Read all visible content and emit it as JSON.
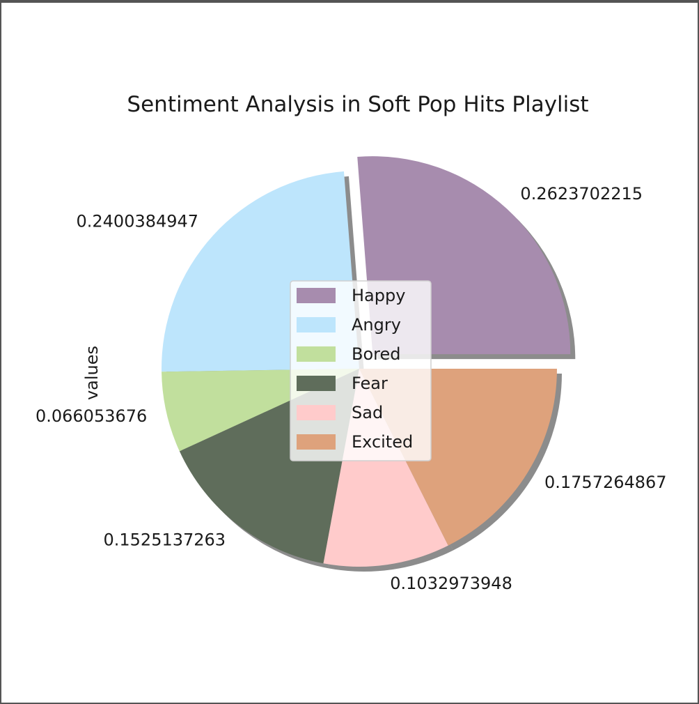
{
  "chart_data": {
    "type": "pie",
    "title": "Sentiment Analysis in Soft Pop Hits Playlist",
    "ylabel": "values",
    "categories": [
      "Happy",
      "Angry",
      "Bored",
      "Fear",
      "Sad",
      "Excited"
    ],
    "values": [
      0.2623702215,
      0.2400384947,
      0.066053676,
      0.1525137263,
      0.1032973948,
      0.1757264867
    ],
    "labels": [
      "0.2623702215",
      "0.2400384947",
      "0.066053676",
      "0.1525137263",
      "0.1032973948",
      "0.1757264867"
    ],
    "colors": [
      "#a78cae",
      "#bde5fc",
      "#c1df9d",
      "#5f6d5b",
      "#ffcbcb",
      "#dea27c"
    ],
    "explode": [
      0.1,
      0,
      0,
      0,
      0,
      0
    ],
    "shadow": true,
    "start_angle": 0,
    "legend": "center"
  }
}
